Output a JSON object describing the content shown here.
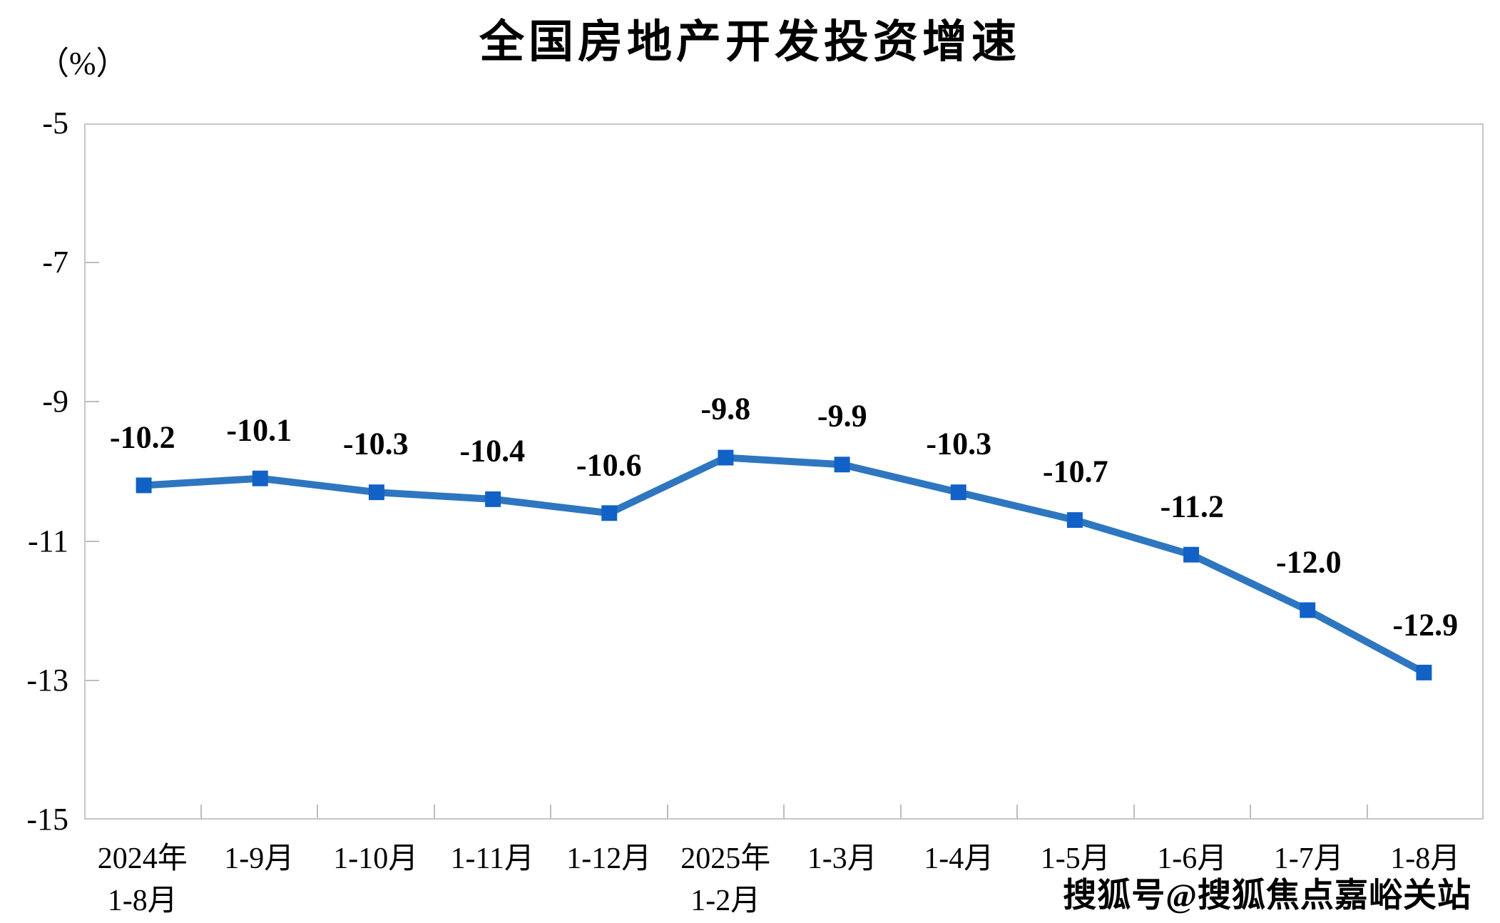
{
  "chart": {
    "title": "全国房地产开发投资增速",
    "unit_label": "（%）"
  },
  "watermark": {
    "text": "搜狐号@搜狐焦点嘉峪关站"
  },
  "chart_data": {
    "type": "line",
    "title": "全国房地产开发投资增速",
    "ylabel": "（%）",
    "categories": [
      "2024年\n1-8月",
      "1-9月",
      "1-10月",
      "1-11月",
      "1-12月",
      "2025年\n1-2月",
      "1-3月",
      "1-4月",
      "1-5月",
      "1-6月",
      "1-7月",
      "1-8月"
    ],
    "values": [
      -10.2,
      -10.1,
      -10.3,
      -10.4,
      -10.6,
      -9.8,
      -9.9,
      -10.3,
      -10.7,
      -11.2,
      -12.0,
      -12.9
    ],
    "value_labels": [
      "-10.2",
      "-10.1",
      "-10.3",
      "-10.4",
      "-10.6",
      "-9.8",
      "-9.9",
      "-10.3",
      "-10.7",
      "-11.2",
      "-12.0",
      "-12.9"
    ],
    "ylim": [
      -15,
      -5
    ],
    "y_ticks": [
      -5,
      -7,
      -9,
      -11,
      -13,
      -15
    ],
    "y_tick_labels": [
      "-5",
      "-7",
      "-9",
      "-11",
      "-13",
      "-15"
    ],
    "grid": false,
    "legend": "none",
    "colors": {
      "line": "#2E76C0",
      "marker": "#1161C6",
      "axis": "#C6C6C6",
      "tick": "#BDBDBD",
      "text": "#000000"
    }
  }
}
